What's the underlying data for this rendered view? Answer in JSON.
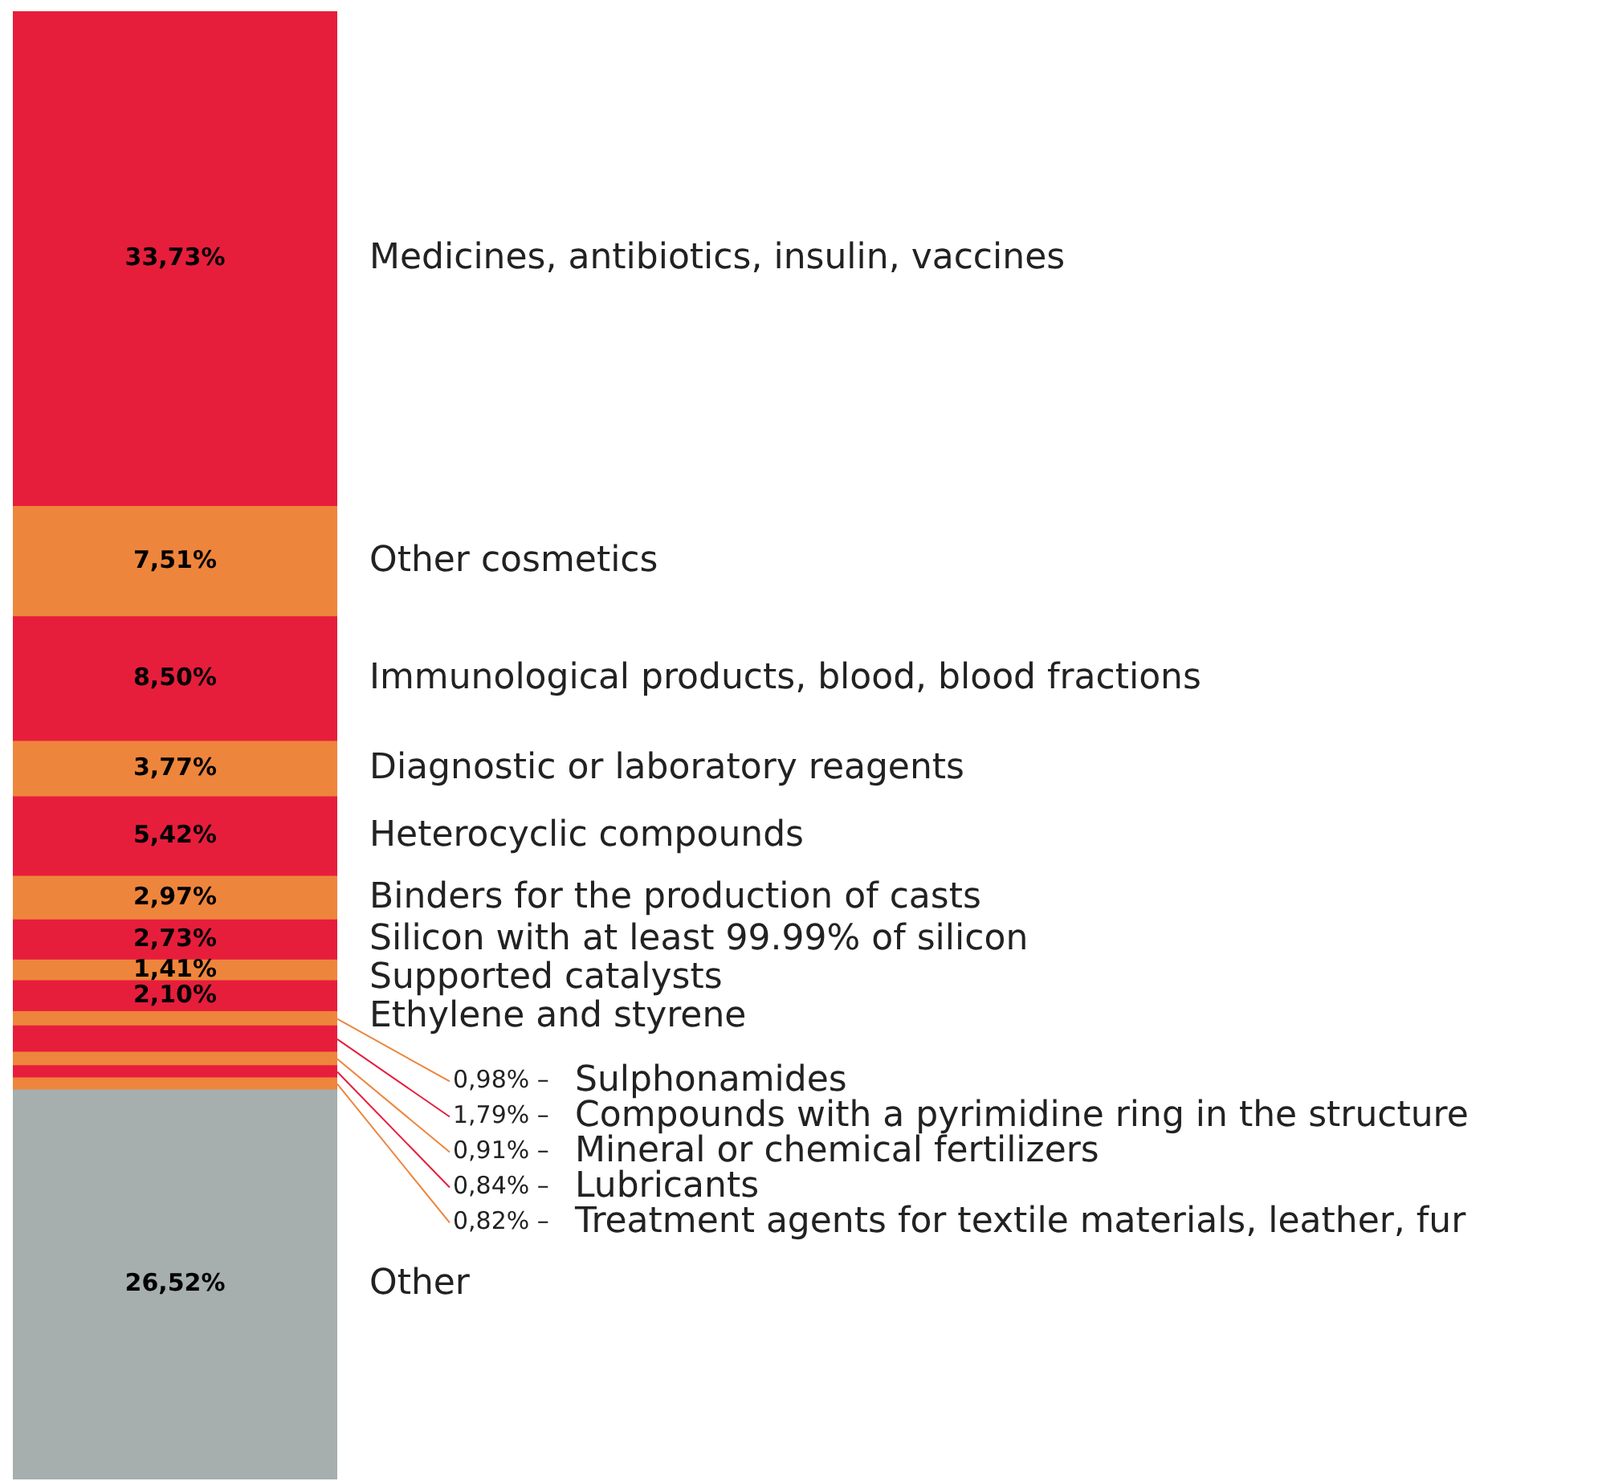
{
  "chart_data": {
    "type": "bar",
    "stacked": true,
    "categories": [
      null
    ],
    "series": [
      {
        "name": "Other",
        "color": "#a6aeae",
        "values": [
          26.52
        ],
        "value_labels": [
          "26,52%"
        ]
      },
      {
        "name": "Treatment agents for textile materials, leather, fur",
        "color": "#ee853c",
        "values": [
          0.82
        ],
        "value_labels": [
          "0,82% –"
        ]
      },
      {
        "name": "Lubricants",
        "color": "#e61e3c",
        "values": [
          0.84
        ],
        "value_labels": [
          "0,84% –"
        ]
      },
      {
        "name": "Mineral or chemical fertilizers",
        "color": "#ee853c",
        "values": [
          0.91
        ],
        "value_labels": [
          "0,91% –"
        ]
      },
      {
        "name": "Compounds with a pyrimidine ring in the structure",
        "color": "#e61e3c",
        "values": [
          1.79
        ],
        "value_labels": [
          "1,79% –"
        ]
      },
      {
        "name": "Sulphonamides",
        "color": "#ee853c",
        "values": [
          0.98
        ],
        "value_labels": [
          "0,98% –"
        ]
      },
      {
        "name": "Ethylene and styrene",
        "color": "#e61e3c",
        "values": [
          2.1
        ],
        "value_labels": [
          "2,10%"
        ]
      },
      {
        "name": "Supported catalysts",
        "color": "#ee853c",
        "values": [
          1.41
        ],
        "value_labels": [
          "1,41%"
        ]
      },
      {
        "name": "Silicon with at least 99.99% of silicon",
        "color": "#e61e3c",
        "values": [
          2.73
        ],
        "value_labels": [
          "2,73%"
        ]
      },
      {
        "name": "Binders for the production of casts",
        "color": "#ee853c",
        "values": [
          2.97
        ],
        "value_labels": [
          "2,97%"
        ]
      },
      {
        "name": "Heterocyclic compounds",
        "color": "#e61e3c",
        "values": [
          5.42
        ],
        "value_labels": [
          "5,42%"
        ]
      },
      {
        "name": "Diagnostic or laboratory reagents",
        "color": "#ee853c",
        "values": [
          3.77
        ],
        "value_labels": [
          "3,77%"
        ]
      },
      {
        "name": "Immunological products, blood, blood fractions",
        "color": "#e61e3c",
        "values": [
          8.5
        ],
        "value_labels": [
          "8,50%"
        ]
      },
      {
        "name": "Other cosmetics",
        "color": "#ee853c",
        "values": [
          7.51
        ],
        "value_labels": [
          "7,51%"
        ]
      },
      {
        "name": "Medicines, antibiotics, insulin, vaccines",
        "color": "#e61e3c",
        "values": [
          33.73
        ],
        "value_labels": [
          "33,73%"
        ]
      }
    ]
  }
}
